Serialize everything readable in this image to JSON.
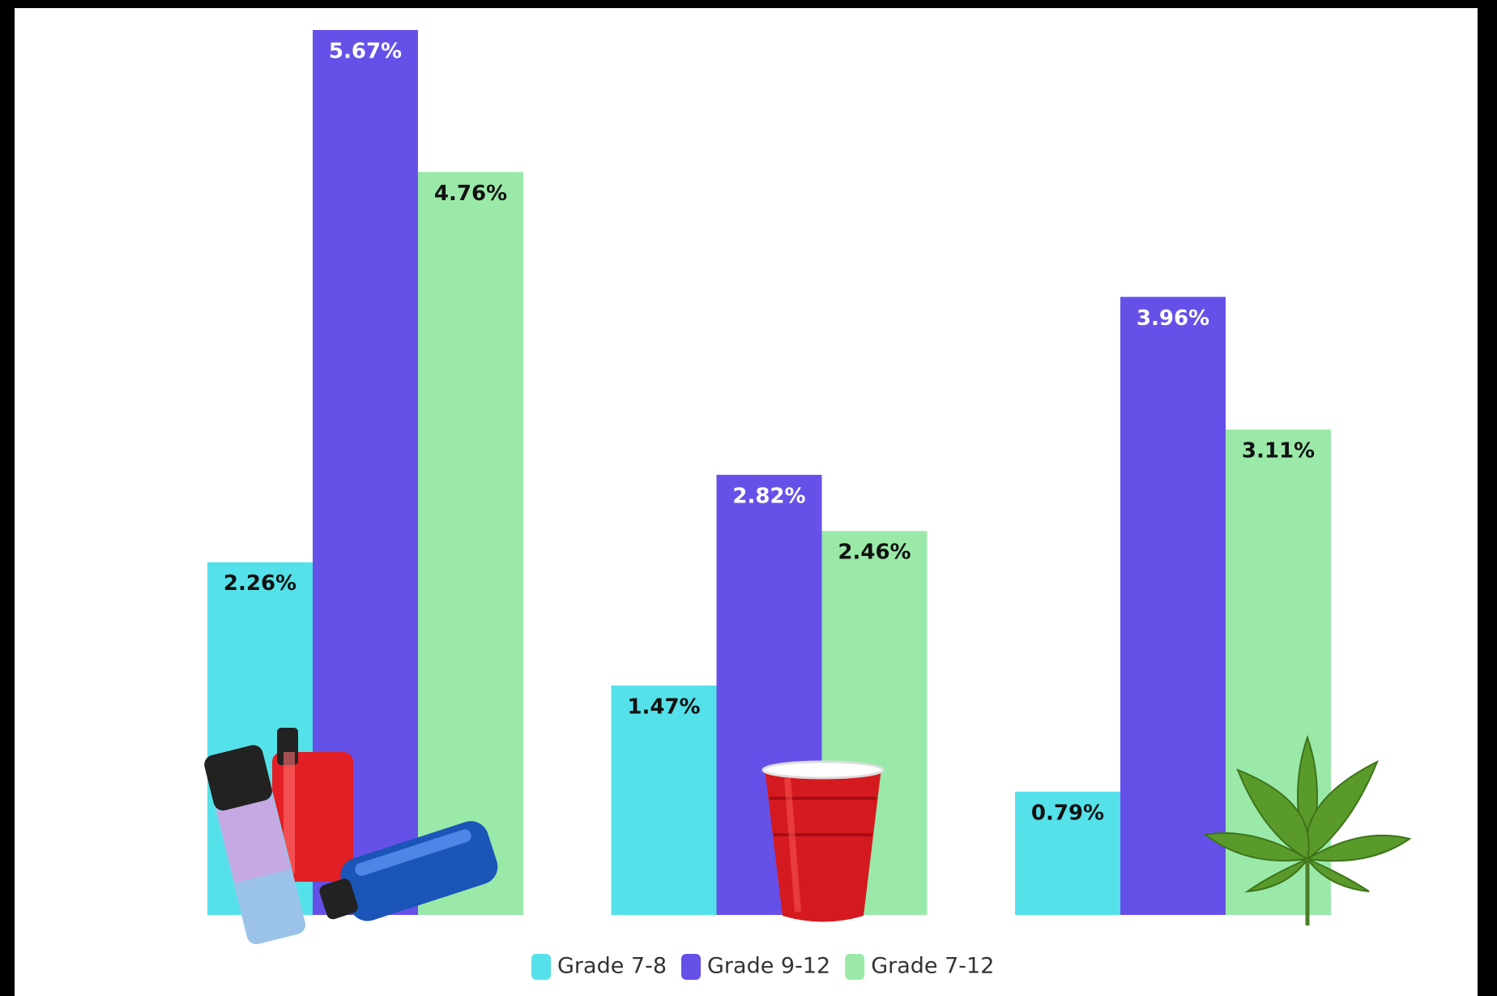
{
  "chart_data": {
    "type": "bar",
    "categories": [
      null,
      null,
      null
    ],
    "series": [
      {
        "name": "Grade 7-8",
        "color": "#55e1e9",
        "values": [
          2.26,
          1.47,
          0.79
        ],
        "value_labels": [
          "2.26%",
          "1.47%",
          "0.79%"
        ],
        "label_color": "#111111"
      },
      {
        "name": "Grade 9-12",
        "color": "#6651e8",
        "values": [
          5.67,
          2.82,
          3.96
        ],
        "value_labels": [
          "5.67%",
          "2.82%",
          "3.96%"
        ],
        "label_color": "#ffffff"
      },
      {
        "name": "Grade 7-12",
        "color": "#9ae9a9",
        "values": [
          4.76,
          2.46,
          3.11
        ],
        "value_labels": [
          "4.76%",
          "2.46%",
          "3.11%"
        ],
        "label_color": "#111111"
      }
    ],
    "legend": "bottom"
  }
}
